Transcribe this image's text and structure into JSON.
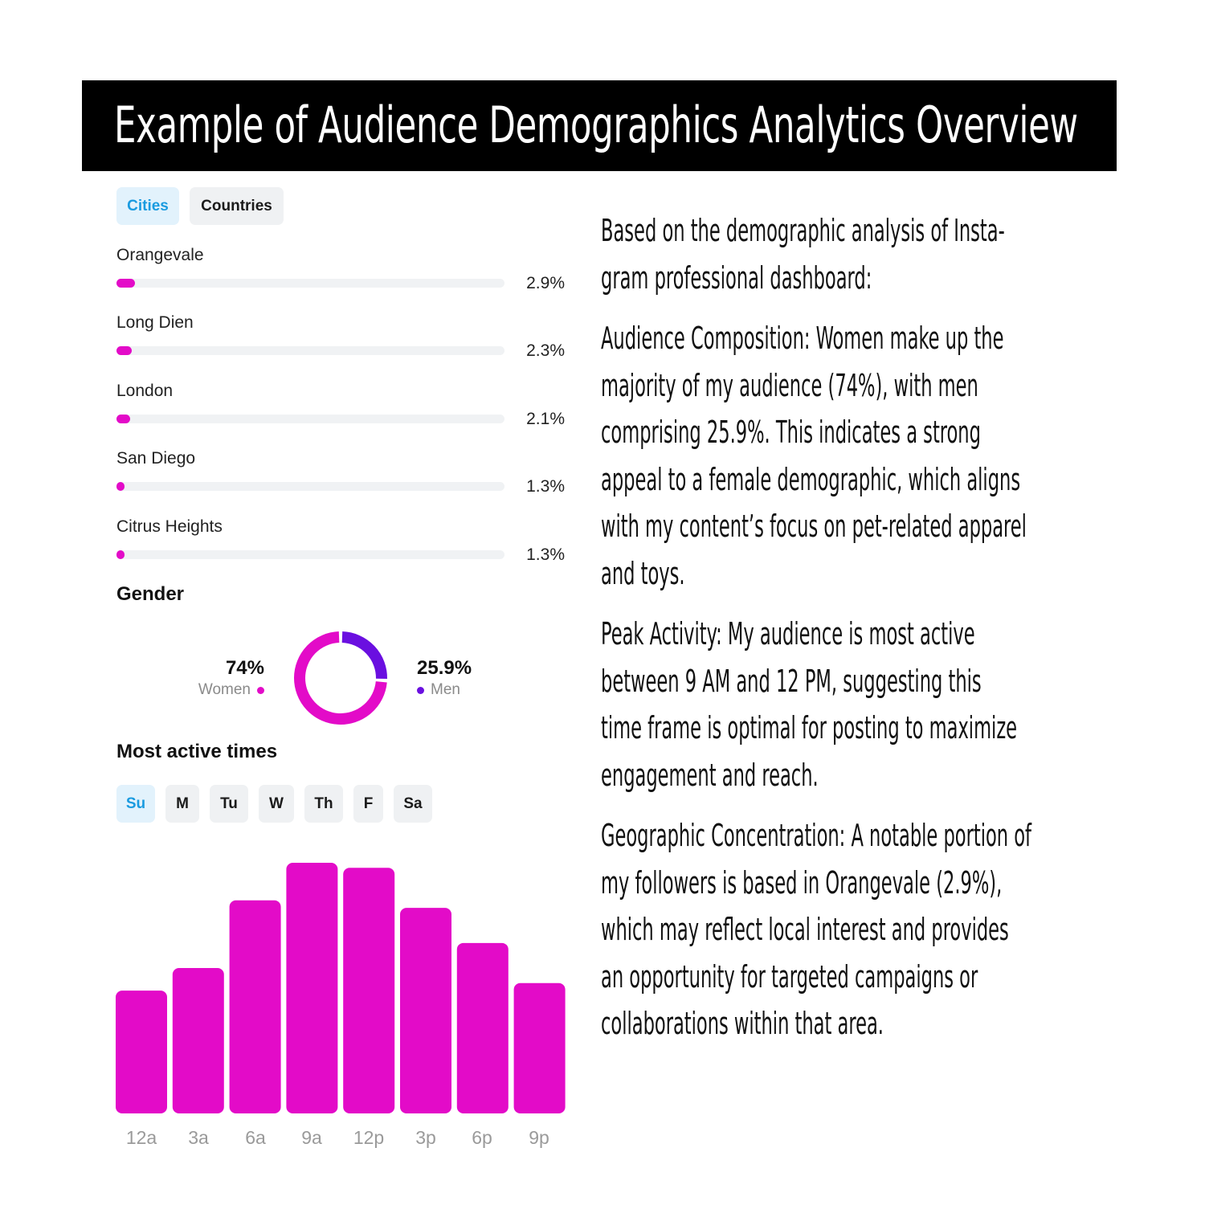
{
  "header": {
    "title": "Example of Audience Demographics Analytics Overview"
  },
  "location_tabs": {
    "cities": "Cities",
    "countries": "Countries",
    "active": "Cities"
  },
  "cities": [
    {
      "name": "Orangevale",
      "percent_label": "2.9%",
      "percent": 2.9
    },
    {
      "name": "Long Dien",
      "percent_label": "2.3%",
      "percent": 2.3
    },
    {
      "name": "London",
      "percent_label": "2.1%",
      "percent": 2.1
    },
    {
      "name": "San Diego",
      "percent_label": "1.3%",
      "percent": 1.3
    },
    {
      "name": "Citrus Heights",
      "percent_label": "1.3%",
      "percent": 1.3
    }
  ],
  "gender": {
    "heading": "Gender",
    "women": {
      "value": "74%",
      "label": "Women",
      "percent": 74.1,
      "color": "#e30bc8"
    },
    "men": {
      "value": "25.9%",
      "label": "Men",
      "percent": 25.9,
      "color": "#6a0fe0"
    }
  },
  "active_times": {
    "heading": "Most active times",
    "days": [
      "Su",
      "M",
      "Tu",
      "W",
      "Th",
      "F",
      "Sa"
    ],
    "active_day": "Su"
  },
  "chart_data": {
    "type": "bar",
    "categories": [
      "12a",
      "3a",
      "6a",
      "9a",
      "12p",
      "3p",
      "6p",
      "9p"
    ],
    "values": [
      49,
      58,
      85,
      100,
      98,
      82,
      68,
      52
    ],
    "ylim": [
      0,
      100
    ],
    "grid": false,
    "color": "#e30bc8"
  },
  "summary": {
    "intro": "Based on the demographic analysis of Insta-\ngram professional dashboard:",
    "composition": "Audience Composition: Women make up the\nmajority of my audience (74%), with men\ncomprising 25.9%. This indicates a strong\nappeal to a female demographic, which aligns\nwith my content’s focus on pet-related apparel\nand toys.",
    "peak": "Peak Activity: My audience is most active\nbetween 9 AM and 12 PM, suggesting this\ntime frame is optimal for posting to maximize\nengagement and reach.",
    "geo": "Geographic Concentration: A notable portion of\nmy followers is based in Orangevale (2.9%),\nwhich may reflect local interest and provides\nan opportunity for targeted campaigns or\ncollaborations within that area."
  }
}
